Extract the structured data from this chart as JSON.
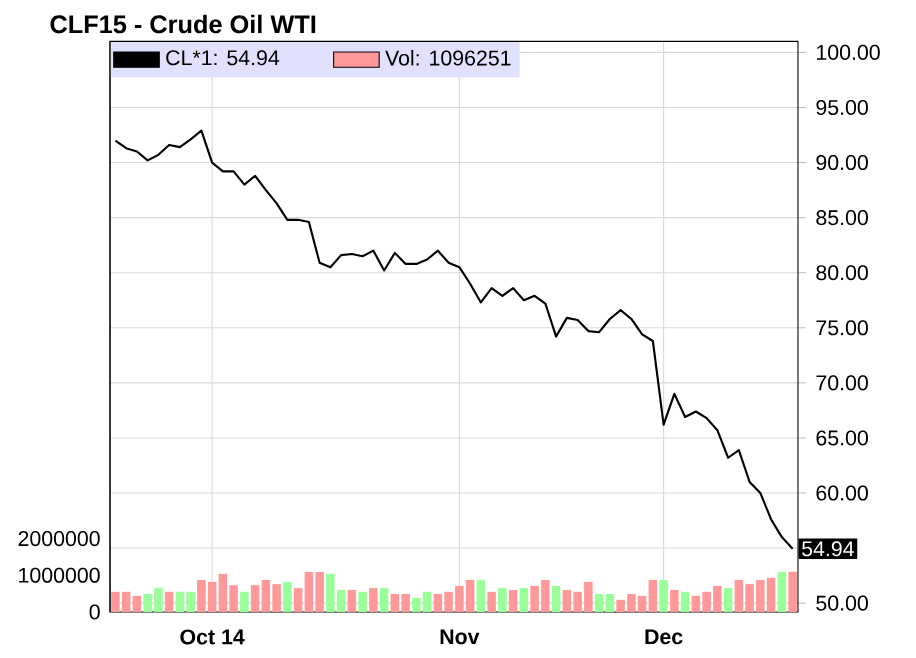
{
  "chart_data": {
    "type": "line",
    "title": "CLF15 - Crude Oil WTI",
    "categories": [
      null,
      null,
      null,
      null,
      null,
      null,
      null,
      null,
      null,
      "Oct 14",
      null,
      null,
      null,
      null,
      null,
      null,
      null,
      null,
      null,
      null,
      null,
      null,
      null,
      null,
      null,
      null,
      null,
      null,
      null,
      null,
      null,
      null,
      "Nov",
      null,
      null,
      null,
      null,
      null,
      null,
      null,
      null,
      null,
      null,
      null,
      null,
      null,
      null,
      null,
      null,
      null,
      null,
      "Dec",
      null,
      null,
      null,
      null,
      null,
      null,
      null,
      null,
      null,
      null,
      null,
      null
    ],
    "series": [
      {
        "name": "CL*1: 54.94",
        "axis": "y2",
        "color": "#000000",
        "values": [
          92.0,
          91.3,
          91.0,
          90.2,
          90.7,
          91.6,
          91.4,
          92.1,
          92.9,
          90.0,
          89.2,
          89.2,
          88.0,
          88.8,
          87.5,
          86.3,
          84.8,
          84.8,
          84.6,
          80.9,
          80.5,
          81.6,
          81.7,
          81.5,
          82.0,
          80.2,
          81.8,
          80.8,
          80.8,
          81.2,
          82.0,
          80.9,
          80.5,
          79.0,
          77.3,
          78.6,
          77.9,
          78.6,
          77.5,
          77.9,
          77.2,
          74.2,
          75.9,
          75.7,
          74.7,
          74.6,
          75.8,
          76.6,
          75.8,
          74.4,
          73.8,
          66.2,
          69.0,
          66.9,
          67.4,
          66.8,
          65.7,
          63.2,
          63.9,
          61.0,
          60.0,
          57.6,
          56.0,
          54.94
        ]
      },
      {
        "name": "Vol: 1096251",
        "type": "bar",
        "axis": "y",
        "color": "#ff9999",
        "values": [
          550000,
          550000,
          440000,
          490000,
          650000,
          550000,
          550000,
          550000,
          870000,
          820000,
          1040000,
          730000,
          550000,
          730000,
          870000,
          760000,
          820000,
          650000,
          1090000,
          1090000,
          1040000,
          600000,
          600000,
          550000,
          650000,
          650000,
          490000,
          490000,
          380000,
          550000,
          490000,
          550000,
          710000,
          870000,
          870000,
          550000,
          650000,
          600000,
          650000,
          710000,
          870000,
          710000,
          600000,
          550000,
          820000,
          490000,
          490000,
          330000,
          490000,
          440000,
          870000,
          870000,
          600000,
          550000,
          440000,
          550000,
          710000,
          650000,
          870000,
          760000,
          870000,
          930000,
          1090000,
          1096251
        ],
        "colors": [
          "#ff9999",
          "#ff9999",
          "#ff9999",
          "#99ff99",
          "#99ff99",
          "#ff9999",
          "#99ff99",
          "#99ff99",
          "#ff9999",
          "#ff9999",
          "#ff9999",
          "#ff9999",
          "#99ff99",
          "#ff9999",
          "#ff9999",
          "#ff9999",
          "#99ff99",
          "#ff9999",
          "#ff9999",
          "#ff9999",
          "#99ff99",
          "#99ff99",
          "#ff9999",
          "#99ff99",
          "#ff9999",
          "#99ff99",
          "#ff9999",
          "#ff9999",
          "#99ff99",
          "#99ff99",
          "#ff9999",
          "#ff9999",
          "#ff9999",
          "#ff9999",
          "#99ff99",
          "#ff9999",
          "#99ff99",
          "#ff9999",
          "#99ff99",
          "#ff9999",
          "#ff9999",
          "#99ff99",
          "#ff9999",
          "#ff9999",
          "#ff9999",
          "#99ff99",
          "#99ff99",
          "#ff9999",
          "#ff9999",
          "#ff9999",
          "#ff9999",
          "#99ff99",
          "#ff9999",
          "#99ff99",
          "#ff9999",
          "#ff9999",
          "#ff9999",
          "#99ff99",
          "#ff9999",
          "#ff9999",
          "#ff9999",
          "#ff9999",
          "#99ff99",
          "#ff9999"
        ]
      }
    ],
    "ylim": [
      0,
      15550000
    ],
    "yticks": [
      0,
      1000000,
      2000000
    ],
    "y2lim": [
      49.2,
      101.0
    ],
    "y2ticks": [
      {
        "value": 50,
        "label": "50.00"
      },
      {
        "value": 55,
        "label": null
      },
      {
        "value": 60,
        "label": "60.00"
      },
      {
        "value": 65,
        "label": "65.00"
      },
      {
        "value": 70,
        "label": "70.00"
      },
      {
        "value": 75,
        "label": "75.00"
      },
      {
        "value": 80,
        "label": "80.00"
      },
      {
        "value": 85,
        "label": "85.00"
      },
      {
        "value": 90,
        "label": "90.00"
      },
      {
        "value": 95,
        "label": "95.00"
      },
      {
        "value": 100,
        "label": "100.00"
      }
    ],
    "grid": true,
    "legend": "top left",
    "annotations": [
      "54.94"
    ]
  }
}
